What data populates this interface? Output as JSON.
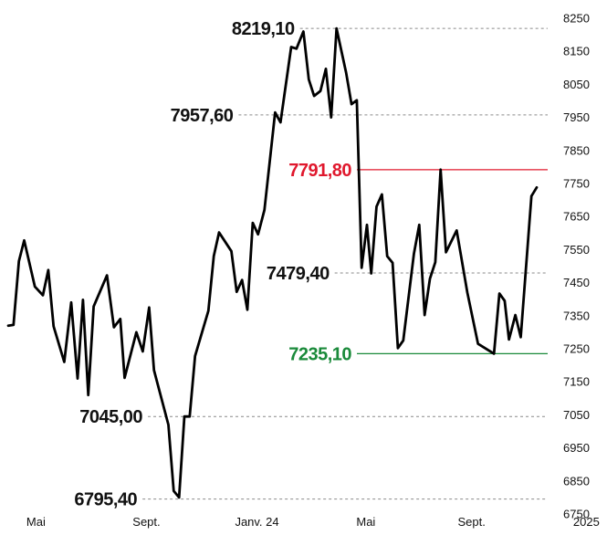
{
  "chart_data": {
    "type": "line",
    "title": "",
    "xlabel": "",
    "ylabel": "",
    "ylim": [
      6750,
      8250
    ],
    "grid": false,
    "legend": "none",
    "y_ticks": [
      8250,
      8150,
      8050,
      7950,
      7850,
      7750,
      7650,
      7550,
      7450,
      7350,
      7250,
      7150,
      7050,
      6950,
      6850,
      6750
    ],
    "x_ticks": [
      {
        "label": "Mai",
        "x": 5.2
      },
      {
        "label": "Sept.",
        "x": 25.9
      },
      {
        "label": "Janv. 24",
        "x": 46.6
      },
      {
        "label": "Mai",
        "x": 67.0
      },
      {
        "label": "Sept.",
        "x": 86.8
      },
      {
        "label": "2025",
        "x": 108.3
      }
    ],
    "series": [
      {
        "values": [
          [
            0.0,
            7320
          ],
          [
            1.0,
            7322
          ],
          [
            2.0,
            7515
          ],
          [
            3.0,
            7578
          ],
          [
            5.0,
            7438
          ],
          [
            6.5,
            7412
          ],
          [
            7.5,
            7488
          ],
          [
            8.5,
            7318
          ],
          [
            10.5,
            7210
          ],
          [
            11.8,
            7390
          ],
          [
            13.0,
            7160
          ],
          [
            14.0,
            7398
          ],
          [
            15.0,
            7110
          ],
          [
            16.0,
            7378
          ],
          [
            18.5,
            7472
          ],
          [
            19.8,
            7315
          ],
          [
            21.0,
            7340
          ],
          [
            21.8,
            7162
          ],
          [
            24.0,
            7300
          ],
          [
            25.2,
            7242
          ],
          [
            26.4,
            7375
          ],
          [
            27.3,
            7185
          ],
          [
            30.0,
            7020
          ],
          [
            31.0,
            6820
          ],
          [
            32.0,
            6800
          ],
          [
            33.0,
            7045
          ],
          [
            34.0,
            7045
          ],
          [
            35.0,
            7228
          ],
          [
            37.5,
            7365
          ],
          [
            38.5,
            7530
          ],
          [
            39.5,
            7602
          ],
          [
            41.8,
            7545
          ],
          [
            42.8,
            7422
          ],
          [
            43.8,
            7458
          ],
          [
            44.8,
            7368
          ],
          [
            45.8,
            7631
          ],
          [
            46.8,
            7596
          ],
          [
            48.0,
            7670
          ],
          [
            50.0,
            7965
          ],
          [
            51.0,
            7935
          ],
          [
            53.0,
            8163
          ],
          [
            54.0,
            8158
          ],
          [
            55.3,
            8210
          ],
          [
            56.3,
            8065
          ],
          [
            57.3,
            8015
          ],
          [
            58.5,
            8030
          ],
          [
            59.5,
            8097
          ],
          [
            60.5,
            7950
          ],
          [
            61.5,
            8219.1
          ],
          [
            63.3,
            8085
          ],
          [
            64.3,
            7990
          ],
          [
            65.3,
            8002
          ],
          [
            66.2,
            7495
          ],
          [
            67.2,
            7625
          ],
          [
            68.0,
            7478
          ],
          [
            69.0,
            7680
          ],
          [
            70.0,
            7717
          ],
          [
            71.0,
            7530
          ],
          [
            72.0,
            7510
          ],
          [
            73.0,
            7252
          ],
          [
            74.0,
            7275
          ],
          [
            76.0,
            7538
          ],
          [
            77.0,
            7625
          ],
          [
            78.0,
            7352
          ],
          [
            79.0,
            7462
          ],
          [
            80.0,
            7512
          ],
          [
            81.0,
            7792
          ],
          [
            82.0,
            7542
          ],
          [
            84.0,
            7608
          ],
          [
            86.0,
            7420
          ],
          [
            88.0,
            7265
          ],
          [
            91.0,
            7235.1
          ],
          [
            92.0,
            7417
          ],
          [
            93.0,
            7395
          ],
          [
            93.8,
            7278
          ],
          [
            95.0,
            7352
          ],
          [
            96.0,
            7285
          ],
          [
            98.0,
            7712
          ],
          [
            99.0,
            7738
          ]
        ]
      }
    ],
    "annotations": [
      {
        "label": "8219,10",
        "value": 8219.1,
        "color": "#111111"
      },
      {
        "label": "7957,60",
        "value": 7957.6,
        "color": "#111111"
      },
      {
        "label": "7791,80",
        "value": 7791.8,
        "color": "#e0182d"
      },
      {
        "label": "7479,40",
        "value": 7479.4,
        "color": "#111111"
      },
      {
        "label": "7235,10",
        "value": 7235.1,
        "color": "#1a8a3a"
      },
      {
        "label": "7045,00",
        "value": 7045.0,
        "color": "#111111"
      },
      {
        "label": "6795,40",
        "value": 6795.4,
        "color": "#111111"
      }
    ]
  }
}
